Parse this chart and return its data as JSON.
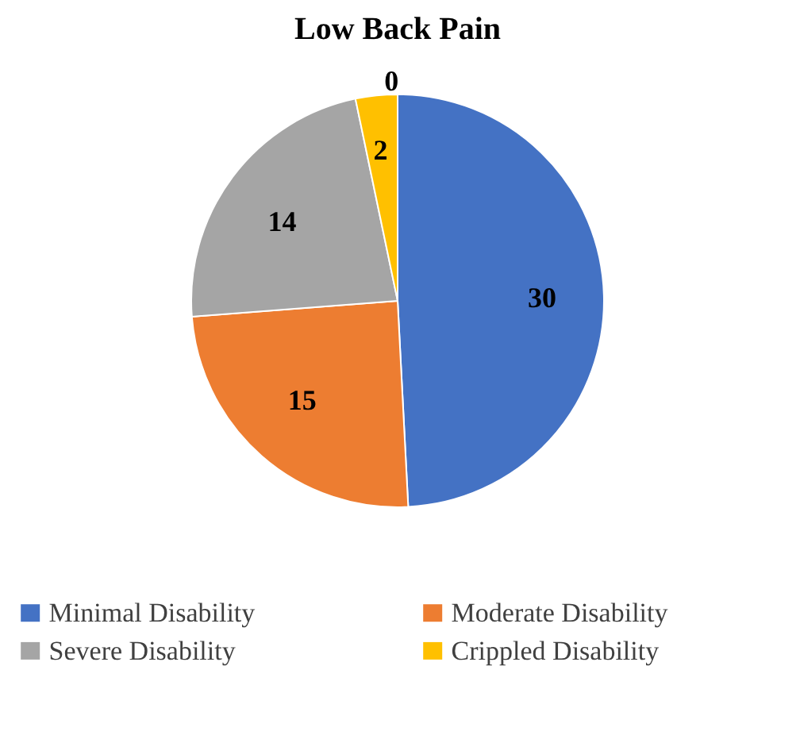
{
  "chart_data": {
    "type": "pie",
    "title": "Low Back Pain",
    "categories": [
      "Minimal Disability",
      "Moderate Disability",
      "Severe Disability",
      "Crippled Disability"
    ],
    "values": [
      30,
      15,
      14,
      2
    ],
    "colors": [
      "#4472c4",
      "#ed7d31",
      "#a5a5a5",
      "#ffc000"
    ],
    "annotations": [
      "0"
    ],
    "data_labels": true,
    "legend": "bottom"
  }
}
